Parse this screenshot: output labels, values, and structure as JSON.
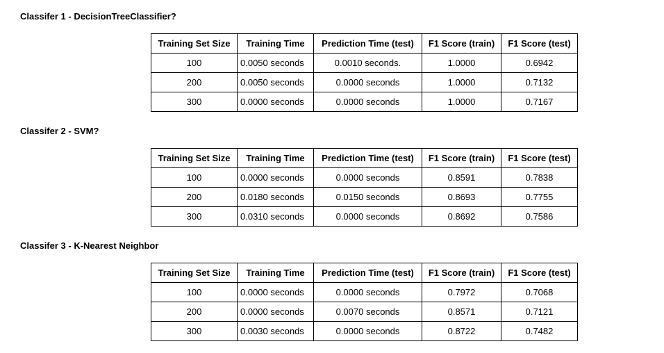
{
  "sections": [
    {
      "heading": "Classifer 1 - DecisionTreeClassifier?",
      "headers": [
        "Training Set Size",
        "Training Time",
        "Prediction Time (test)",
        "F1 Score (train)",
        "F1 Score (test)"
      ],
      "rows": [
        [
          "100",
          "0.0050 seconds",
          "0.0010 seconds.",
          "1.0000",
          "0.6942"
        ],
        [
          "200",
          "0.0050 seconds",
          "0.0000 seconds",
          "1.0000",
          "0.7132"
        ],
        [
          "300",
          "0.0000 seconds",
          "0.0000 seconds",
          "1.0000",
          "0.7167"
        ]
      ]
    },
    {
      "heading": "Classifer 2 - SVM?",
      "headers": [
        "Training Set Size",
        "Training Time",
        "Prediction Time (test)",
        "F1 Score (train)",
        "F1 Score (test)"
      ],
      "rows": [
        [
          "100",
          "0.0000 seconds",
          "0.0000 seconds",
          "0.8591",
          "0.7838"
        ],
        [
          "200",
          "0.0180 seconds",
          "0.0150 seconds",
          "0.8693",
          "0.7755"
        ],
        [
          "300",
          "0.0310 seconds",
          "0.0000 seconds",
          "0.8692",
          "0.7586"
        ]
      ]
    },
    {
      "heading": "Classifer 3 - K-Nearest Neighbor",
      "headers": [
        "Training Set Size",
        "Training Time",
        "Prediction Time (test)",
        "F1 Score (train)",
        "F1 Score (test)"
      ],
      "rows": [
        [
          "100",
          "0.0000 seconds",
          "0.0000 seconds",
          "0.7972",
          "0.7068"
        ],
        [
          "200",
          "0.0000 seconds",
          "0.0070 seconds",
          "0.8571",
          "0.7121"
        ],
        [
          "300",
          "0.0030 seconds",
          "0.0000 seconds",
          "0.8722",
          "0.7482"
        ]
      ]
    }
  ]
}
